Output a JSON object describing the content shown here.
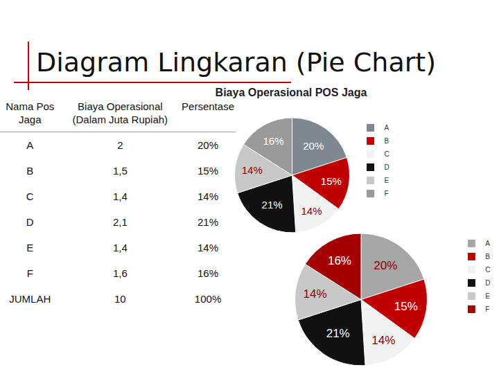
{
  "slide_title": "Diagram Lingkaran (Pie Chart)",
  "table": {
    "header": [
      "Nama Pos Jaga",
      "Biaya Operasional (Dalam Juta Rupiah)",
      "Persentase"
    ],
    "rows": [
      [
        "A",
        "2",
        "20%"
      ],
      [
        "B",
        "1,5",
        "15%"
      ],
      [
        "C",
        "1,4",
        "14%"
      ],
      [
        "D",
        "2,1",
        "21%"
      ],
      [
        "E",
        "1,4",
        "14%"
      ],
      [
        "F",
        "1,6",
        "16%"
      ],
      [
        "JUMLAH",
        "10",
        "100%"
      ]
    ]
  },
  "chart_data": [
    {
      "type": "pie",
      "title": "Biaya Operasional POS Jaga",
      "categories": [
        "A",
        "B",
        "C",
        "D",
        "E",
        "F"
      ],
      "values": [
        20,
        15,
        14,
        21,
        14,
        16
      ],
      "value_labels": [
        "20%",
        "15%",
        "14%",
        "21%",
        "14%",
        "16%"
      ],
      "colors": [
        "#7f8790",
        "#c00000",
        "#f2f2f2",
        "#111111",
        "#c8c8c8",
        "#9a9a9a"
      ],
      "data_labels": true,
      "legend": "right"
    },
    {
      "type": "pie",
      "categories": [
        "A",
        "B",
        "C",
        "D",
        "E",
        "F"
      ],
      "values": [
        20,
        15,
        14,
        21,
        14,
        16
      ],
      "value_labels": [
        "20%",
        "15%",
        "14%",
        "21%",
        "14%",
        "16%"
      ],
      "colors": [
        "#a6a6a6",
        "#c00000",
        "#f2f2f2",
        "#111111",
        "#c8c8c8",
        "#a50000"
      ],
      "data_labels": true,
      "legend": "right"
    }
  ]
}
